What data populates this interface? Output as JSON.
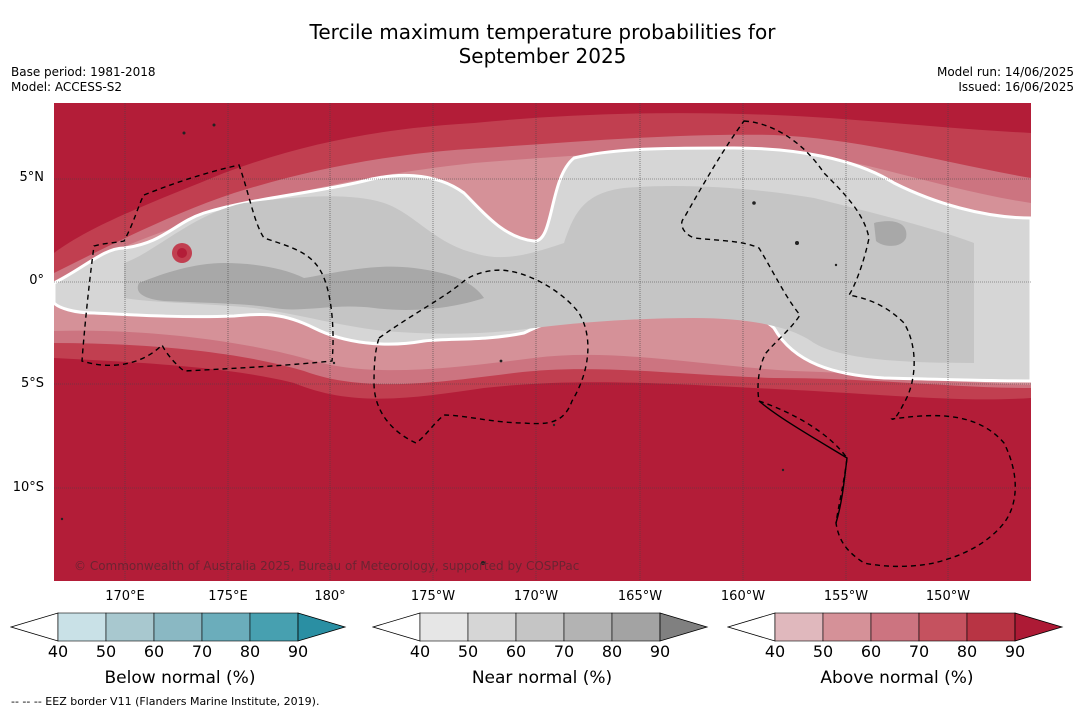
{
  "title_line1": "Tercile maximum temperature probabilities for",
  "title_line2": "September 2025",
  "base_period": "Base period: 1981-2018",
  "model": "Model: ACCESS-S2",
  "model_run": "Model run: 14/06/2025",
  "issued": "Issued: 16/06/2025",
  "copyright": "© Commonwealth of Australia 2025, Bureau of Meteorology, supported by COSPPac",
  "lat_labels": [
    "5°N",
    "0°",
    "5°S",
    "10°S"
  ],
  "lon_labels": [
    "170°E",
    "175°E",
    "180°",
    "175°W",
    "170°W",
    "165°W",
    "160°W",
    "155°W",
    "150°W"
  ],
  "colorbars": [
    {
      "title": "Below normal (%)",
      "ticks": [
        "40",
        "50",
        "60",
        "70",
        "80",
        "90"
      ],
      "colors": [
        "#ffffff",
        "#c9e1e7",
        "#a8c8cf",
        "#8ab8c3",
        "#6badbb",
        "#47a0b0",
        "#2a8fa3"
      ]
    },
    {
      "title": "Near normal (%)",
      "ticks": [
        "40",
        "50",
        "60",
        "70",
        "80",
        "90"
      ],
      "colors": [
        "#ffffff",
        "#e6e6e6",
        "#d6d6d6",
        "#c5c5c5",
        "#b3b3b3",
        "#a3a3a3",
        "#808080"
      ]
    },
    {
      "title": "Above normal (%)",
      "ticks": [
        "40",
        "50",
        "60",
        "70",
        "80",
        "90"
      ],
      "colors": [
        "#ffffff",
        "#e0b8bd",
        "#d59198",
        "#cc7480",
        "#c5525f",
        "#b83444",
        "#ad1a35"
      ]
    }
  ],
  "footnote": "--  --  -- EEZ border V11 (Flanders Marine Institute, 2019)."
}
